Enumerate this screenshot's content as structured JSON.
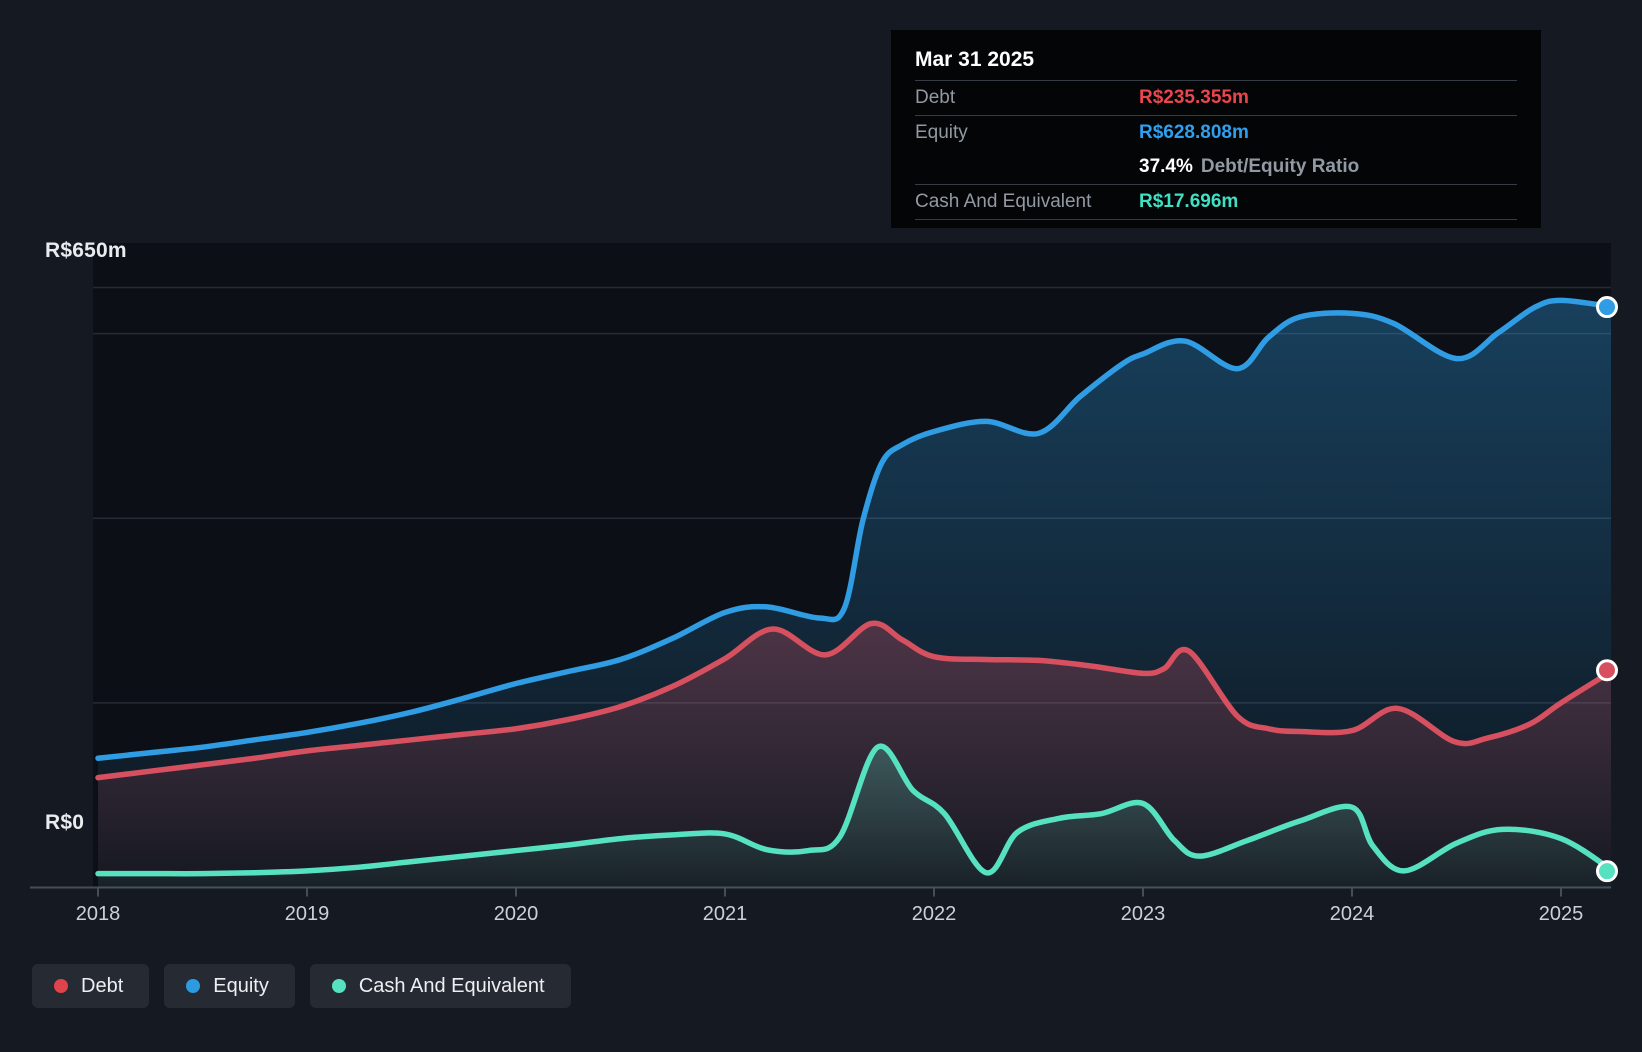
{
  "tooltip": {
    "date": "Mar 31 2025",
    "debt_label": "Debt",
    "debt_value": "R$235.355m",
    "equity_label": "Equity",
    "equity_value": "R$628.808m",
    "ratio_value": "37.4%",
    "ratio_label": "Debt/Equity Ratio",
    "cash_label": "Cash And Equivalent",
    "cash_value": "R$17.696m"
  },
  "y_axis": {
    "max_label": "R$650m",
    "zero_label": "R$0"
  },
  "x_axis": {
    "years": [
      "2018",
      "2019",
      "2020",
      "2021",
      "2022",
      "2023",
      "2024",
      "2025"
    ]
  },
  "legend": {
    "items": [
      {
        "label": "Debt",
        "color": "#e0434c"
      },
      {
        "label": "Equity",
        "color": "#2d9be2"
      },
      {
        "label": "Cash And Equivalent",
        "color": "#56e2c1"
      }
    ]
  },
  "colors": {
    "page_bg": "#151a22",
    "plot_bg": "#0c1016",
    "gridline": "#262c35",
    "axis": "#474d57",
    "debt_line": "#d6505f",
    "equity_line": "#2f9ce4",
    "cash_line": "#56e2c1",
    "debt_value_text": "#e9464d",
    "equity_value_text": "#2f9fee",
    "cash_value_text": "#40e0c2"
  },
  "chart_data": {
    "type": "area",
    "title": "Debt to Equity History",
    "x_unit": "year",
    "x_range": [
      2018,
      2025.25
    ],
    "ylim": [
      0,
      650
    ],
    "y_gridline_values": [
      650,
      600,
      400,
      200
    ],
    "grid": true,
    "legend_position": "bottom-left",
    "tooltip_date": "Mar 31 2025",
    "end_values": {
      "Debt": 235.355,
      "Equity": 628.808,
      "Cash And Equivalent": 17.696
    },
    "series": [
      {
        "name": "Equity",
        "color": "#2f9ce4",
        "points": [
          [
            2018,
            140
          ],
          [
            2018.25,
            146
          ],
          [
            2018.5,
            152
          ],
          [
            2018.75,
            160
          ],
          [
            2019,
            168
          ],
          [
            2019.25,
            178
          ],
          [
            2019.5,
            190
          ],
          [
            2019.75,
            205
          ],
          [
            2020,
            221
          ],
          [
            2020.25,
            234
          ],
          [
            2020.5,
            247
          ],
          [
            2020.75,
            270
          ],
          [
            2021,
            298
          ],
          [
            2021.2,
            304
          ],
          [
            2021.45,
            292
          ],
          [
            2021.57,
            302
          ],
          [
            2021.66,
            398
          ],
          [
            2021.75,
            460
          ],
          [
            2021.85,
            480
          ],
          [
            2022,
            494
          ],
          [
            2022.25,
            505
          ],
          [
            2022.5,
            492
          ],
          [
            2022.7,
            532
          ],
          [
            2022.9,
            567
          ],
          [
            2023,
            578
          ],
          [
            2023.2,
            592
          ],
          [
            2023.45,
            562
          ],
          [
            2023.6,
            596
          ],
          [
            2023.75,
            618
          ],
          [
            2024,
            622
          ],
          [
            2024.2,
            611
          ],
          [
            2024.5,
            573
          ],
          [
            2024.7,
            601
          ],
          [
            2024.87,
            628
          ],
          [
            2025,
            636
          ],
          [
            2025.25,
            628.808
          ]
        ]
      },
      {
        "name": "Debt",
        "color": "#d6505f",
        "points": [
          [
            2018,
            119
          ],
          [
            2018.25,
            126
          ],
          [
            2018.5,
            133
          ],
          [
            2018.75,
            140
          ],
          [
            2019,
            148
          ],
          [
            2019.25,
            154
          ],
          [
            2019.5,
            160
          ],
          [
            2019.75,
            166
          ],
          [
            2020,
            172
          ],
          [
            2020.25,
            182
          ],
          [
            2020.5,
            196
          ],
          [
            2020.75,
            218
          ],
          [
            2021,
            248
          ],
          [
            2021.23,
            280
          ],
          [
            2021.48,
            252
          ],
          [
            2021.7,
            286
          ],
          [
            2021.85,
            268
          ],
          [
            2022,
            250
          ],
          [
            2022.25,
            247
          ],
          [
            2022.5,
            246
          ],
          [
            2022.75,
            240
          ],
          [
            2023,
            232
          ],
          [
            2023.1,
            237
          ],
          [
            2023.22,
            256
          ],
          [
            2023.45,
            186
          ],
          [
            2023.6,
            172
          ],
          [
            2023.75,
            169
          ],
          [
            2024,
            170
          ],
          [
            2024.22,
            194
          ],
          [
            2024.49,
            158
          ],
          [
            2024.65,
            162
          ],
          [
            2024.85,
            177
          ],
          [
            2025,
            200
          ],
          [
            2025.25,
            235.355
          ]
        ]
      },
      {
        "name": "Cash And Equivalent",
        "color": "#56e2c1",
        "points": [
          [
            2018,
            15
          ],
          [
            2018.25,
            15
          ],
          [
            2018.5,
            15
          ],
          [
            2018.75,
            16
          ],
          [
            2019,
            18
          ],
          [
            2019.25,
            22
          ],
          [
            2019.5,
            28
          ],
          [
            2019.75,
            34
          ],
          [
            2020,
            40
          ],
          [
            2020.25,
            46
          ],
          [
            2020.5,
            53
          ],
          [
            2020.75,
            57
          ],
          [
            2021,
            58
          ],
          [
            2021.2,
            41
          ],
          [
            2021.4,
            40
          ],
          [
            2021.55,
            55
          ],
          [
            2021.73,
            152
          ],
          [
            2021.9,
            105
          ],
          [
            2022.05,
            80
          ],
          [
            2022.25,
            16
          ],
          [
            2022.4,
            60
          ],
          [
            2022.6,
            75
          ],
          [
            2022.8,
            80
          ],
          [
            2023,
            91
          ],
          [
            2023.15,
            51
          ],
          [
            2023.27,
            34
          ],
          [
            2023.5,
            51
          ],
          [
            2023.75,
            72
          ],
          [
            2024,
            87
          ],
          [
            2024.1,
            45
          ],
          [
            2024.25,
            18
          ],
          [
            2024.5,
            48
          ],
          [
            2024.72,
            63
          ],
          [
            2025,
            53
          ],
          [
            2025.25,
            17.696
          ]
        ]
      }
    ]
  }
}
